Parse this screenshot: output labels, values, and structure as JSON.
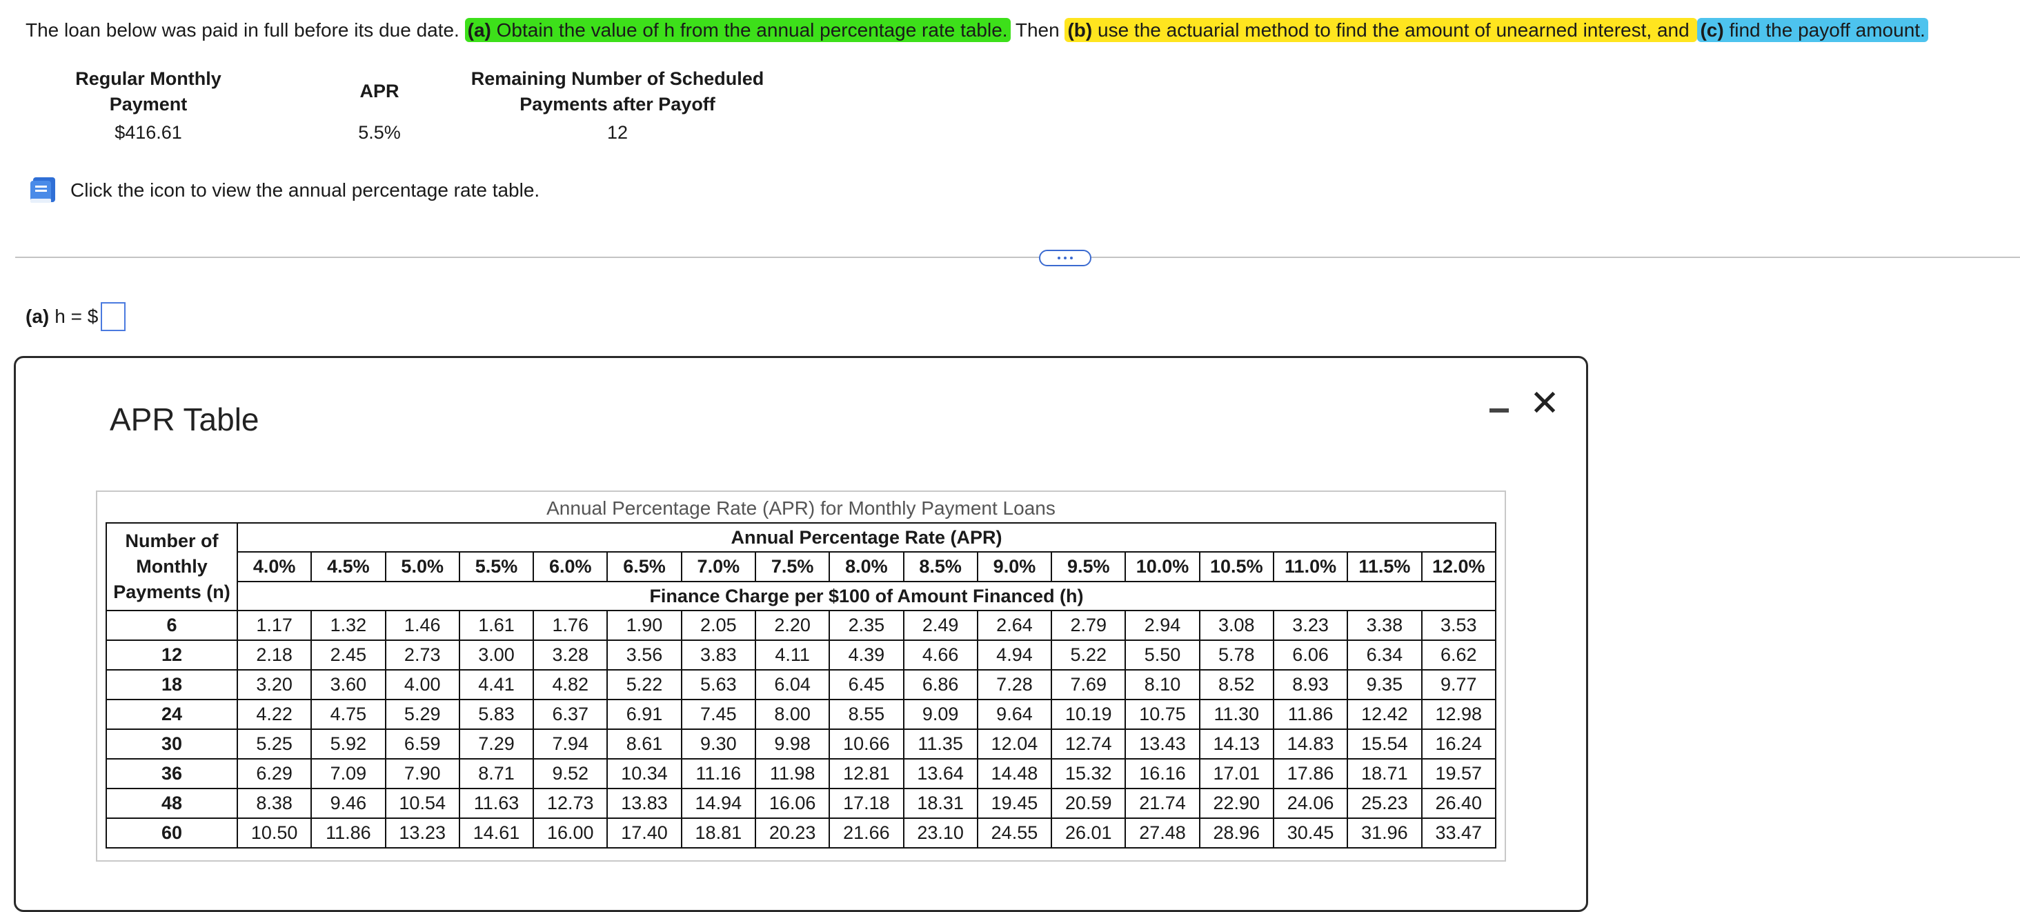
{
  "question": {
    "intro": "The loan below was paid in full before its due date. ",
    "part_a_label": "(a)",
    "part_a_text": " Obtain the value of h from the annual percentage rate table.",
    "then_text": " Then ",
    "part_b_label": "(b)",
    "part_b_text": " use the actuarial method to find the amount of unearned interest, and ",
    "part_c_label": "(c)",
    "part_c_text": " find the payoff amount."
  },
  "given": {
    "payment_header_1": "Regular Monthly",
    "payment_header_2": "Payment",
    "apr_header": "APR",
    "remaining_header_1": "Remaining Number of Scheduled",
    "remaining_header_2": "Payments after Payoff",
    "payment_value": "$416.61",
    "apr_value": "5.5%",
    "remaining_value": "12"
  },
  "icon_text": "Click the icon to view the annual percentage rate table.",
  "answer": {
    "label": "(a)",
    "expression": "h = $",
    "value": ""
  },
  "modal": {
    "title": "APR Table",
    "close_symbol": "✕",
    "table_caption": "Annual Percentage Rate (APR) for Monthly Payment Loans",
    "col_header_1": "Number of",
    "col_header_2": "Monthly",
    "col_header_3": "Payments (n)",
    "apr_span_header": "Annual Percentage Rate (APR)",
    "finance_span_header": "Finance Charge per $100 of Amount Financed (h)",
    "rates": [
      "4.0%",
      "4.5%",
      "5.0%",
      "5.5%",
      "6.0%",
      "6.5%",
      "7.0%",
      "7.5%",
      "8.0%",
      "8.5%",
      "9.0%",
      "9.5%",
      "10.0%",
      "10.5%",
      "11.0%",
      "11.5%",
      "12.0%"
    ],
    "rows": [
      {
        "n": "6",
        "values": [
          "1.17",
          "1.32",
          "1.46",
          "1.61",
          "1.76",
          "1.90",
          "2.05",
          "2.20",
          "2.35",
          "2.49",
          "2.64",
          "2.79",
          "2.94",
          "3.08",
          "3.23",
          "3.38",
          "3.53"
        ]
      },
      {
        "n": "12",
        "values": [
          "2.18",
          "2.45",
          "2.73",
          "3.00",
          "3.28",
          "3.56",
          "3.83",
          "4.11",
          "4.39",
          "4.66",
          "4.94",
          "5.22",
          "5.50",
          "5.78",
          "6.06",
          "6.34",
          "6.62"
        ]
      },
      {
        "n": "18",
        "values": [
          "3.20",
          "3.60",
          "4.00",
          "4.41",
          "4.82",
          "5.22",
          "5.63",
          "6.04",
          "6.45",
          "6.86",
          "7.28",
          "7.69",
          "8.10",
          "8.52",
          "8.93",
          "9.35",
          "9.77"
        ]
      },
      {
        "n": "24",
        "values": [
          "4.22",
          "4.75",
          "5.29",
          "5.83",
          "6.37",
          "6.91",
          "7.45",
          "8.00",
          "8.55",
          "9.09",
          "9.64",
          "10.19",
          "10.75",
          "11.30",
          "11.86",
          "12.42",
          "12.98"
        ]
      },
      {
        "n": "30",
        "values": [
          "5.25",
          "5.92",
          "6.59",
          "7.29",
          "7.94",
          "8.61",
          "9.30",
          "9.98",
          "10.66",
          "11.35",
          "12.04",
          "12.74",
          "13.43",
          "14.13",
          "14.83",
          "15.54",
          "16.24"
        ]
      },
      {
        "n": "36",
        "values": [
          "6.29",
          "7.09",
          "7.90",
          "8.71",
          "9.52",
          "10.34",
          "11.16",
          "11.98",
          "12.81",
          "13.64",
          "14.48",
          "15.32",
          "16.16",
          "17.01",
          "17.86",
          "18.71",
          "19.57"
        ]
      },
      {
        "n": "48",
        "values": [
          "8.38",
          "9.46",
          "10.54",
          "11.63",
          "12.73",
          "13.83",
          "14.94",
          "16.06",
          "17.18",
          "18.31",
          "19.45",
          "20.59",
          "21.74",
          "22.90",
          "24.06",
          "25.23",
          "26.40"
        ]
      },
      {
        "n": "60",
        "values": [
          "10.50",
          "11.86",
          "13.23",
          "14.61",
          "16.00",
          "17.40",
          "18.81",
          "20.23",
          "21.66",
          "23.10",
          "24.55",
          "26.01",
          "27.48",
          "28.96",
          "30.45",
          "31.96",
          "33.47"
        ]
      }
    ]
  }
}
